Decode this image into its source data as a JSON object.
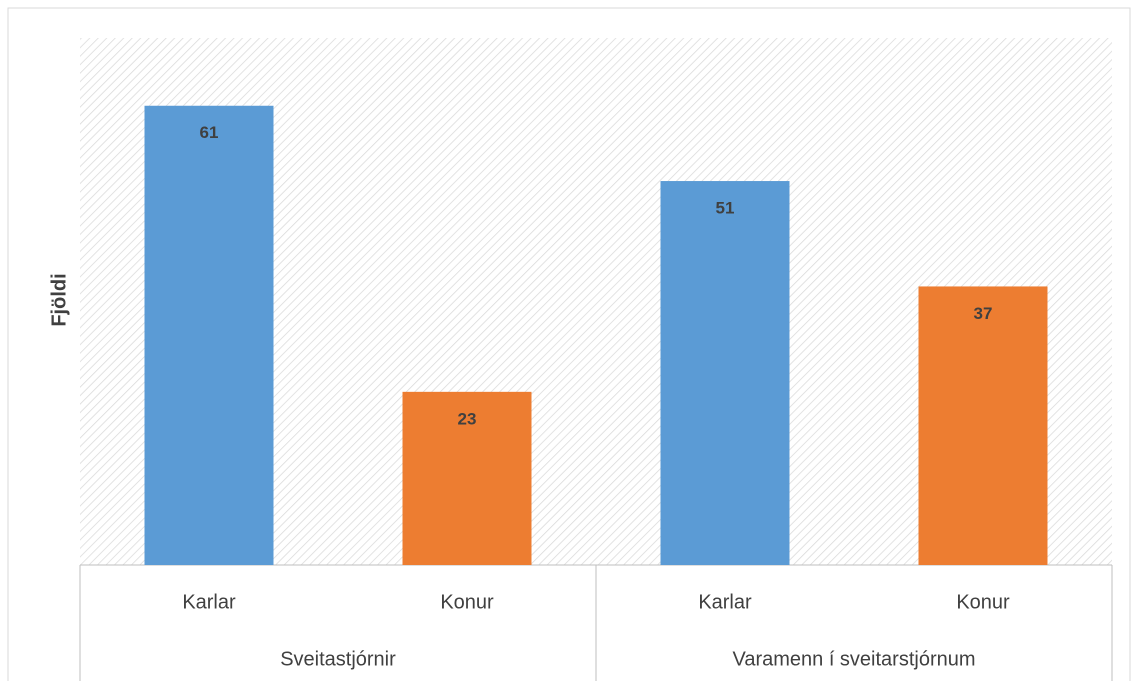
{
  "chart_data": {
    "type": "bar",
    "y_label": "Fjöldi",
    "categories": [
      "Karlar",
      "Konur",
      "Karlar",
      "Konur"
    ],
    "groups": [
      "Sveitastjórnir",
      "Varamenn í sveitarstjórnum"
    ],
    "values": [
      61,
      23,
      51,
      37
    ],
    "colors": [
      "#5b9bd5",
      "#ed7d31",
      "#5b9bd5",
      "#ed7d31"
    ],
    "ylim": [
      0,
      70
    ]
  }
}
